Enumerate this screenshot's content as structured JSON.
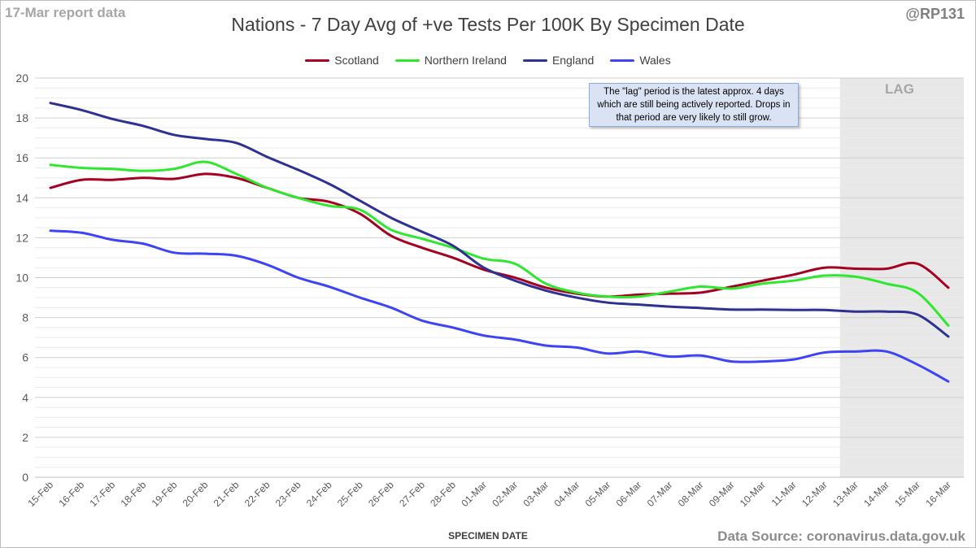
{
  "header": {
    "report_label": "17-Mar report data",
    "handle": "@RP131"
  },
  "footer": {
    "source": "Data Source: coronavirus.data.gov.uk"
  },
  "annotation": {
    "text": "The \"lag\" period is the latest approx. 4 days which are still being actively reported. Drops in that period are very likely to still grow."
  },
  "lag": {
    "label": "LAG",
    "start_category": "13-Mar",
    "end_category": "16-Mar",
    "color": "#e8e8e8"
  },
  "chart_data": {
    "type": "line",
    "title": "Nations - 7 Day Avg of +ve Tests Per 100K By Specimen Date",
    "xlabel": "SPECIMEN DATE",
    "ylabel": "",
    "ylim": [
      0,
      20
    ],
    "y_ticks": [
      0,
      2,
      4,
      6,
      8,
      10,
      12,
      14,
      16,
      18,
      20
    ],
    "minor_gridlines": true,
    "legend_position": "top-center",
    "categories": [
      "15-Feb",
      "16-Feb",
      "17-Feb",
      "18-Feb",
      "19-Feb",
      "20-Feb",
      "21-Feb",
      "22-Feb",
      "23-Feb",
      "24-Feb",
      "25-Feb",
      "26-Feb",
      "27-Feb",
      "28-Feb",
      "01-Mar",
      "02-Mar",
      "03-Mar",
      "04-Mar",
      "05-Mar",
      "06-Mar",
      "07-Mar",
      "08-Mar",
      "09-Mar",
      "10-Mar",
      "11-Mar",
      "12-Mar",
      "13-Mar",
      "14-Mar",
      "15-Mar",
      "16-Mar"
    ],
    "series": [
      {
        "name": "Scotland",
        "color": "#a50021",
        "values": [
          14.5,
          14.9,
          14.9,
          15.0,
          14.95,
          15.2,
          15.0,
          14.5,
          14.0,
          13.8,
          13.2,
          12.1,
          11.5,
          11.0,
          10.4,
          10.0,
          9.5,
          9.2,
          9.05,
          9.15,
          9.2,
          9.25,
          9.55,
          9.85,
          10.15,
          10.5,
          10.45,
          10.45,
          10.7,
          9.5
        ]
      },
      {
        "name": "Northern Ireland",
        "color": "#2ee82e",
        "values": [
          15.65,
          15.5,
          15.45,
          15.35,
          15.45,
          15.8,
          15.2,
          14.5,
          14.0,
          13.6,
          13.4,
          12.4,
          11.95,
          11.5,
          10.95,
          10.7,
          9.7,
          9.25,
          9.05,
          9.05,
          9.3,
          9.55,
          9.45,
          9.7,
          9.85,
          10.1,
          10.05,
          9.7,
          9.25,
          7.6
        ]
      },
      {
        "name": "England",
        "color": "#2e3192",
        "values": [
          18.75,
          18.4,
          17.95,
          17.6,
          17.15,
          16.95,
          16.75,
          16.05,
          15.4,
          14.7,
          13.85,
          13.0,
          12.3,
          11.6,
          10.5,
          9.85,
          9.35,
          9.0,
          8.75,
          8.65,
          8.55,
          8.48,
          8.4,
          8.4,
          8.38,
          8.38,
          8.3,
          8.3,
          8.15,
          7.05
        ]
      },
      {
        "name": "Wales",
        "color": "#3c44f5",
        "values": [
          12.35,
          12.25,
          11.9,
          11.7,
          11.25,
          11.2,
          11.1,
          10.65,
          10.0,
          9.55,
          9.0,
          8.5,
          7.85,
          7.5,
          7.1,
          6.9,
          6.6,
          6.5,
          6.2,
          6.3,
          6.05,
          6.1,
          5.8,
          5.8,
          5.9,
          6.25,
          6.3,
          6.3,
          5.65,
          4.8
        ]
      }
    ]
  }
}
